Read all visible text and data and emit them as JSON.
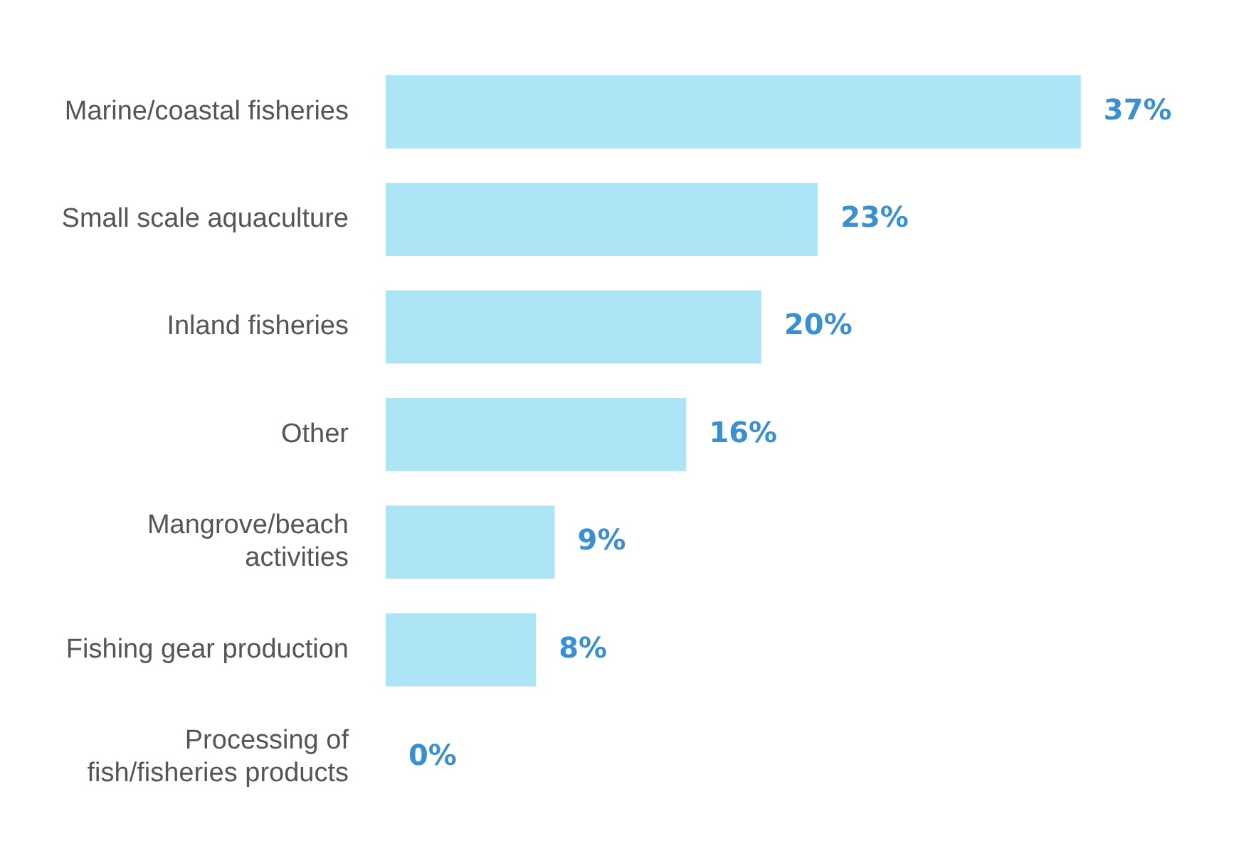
{
  "chart_data": {
    "type": "bar",
    "orientation": "horizontal",
    "categories": [
      "Marine/coastal fisheries",
      "Small scale aquaculture",
      "Inland fisheries",
      "Other",
      "Mangrove/beach activities",
      "Fishing gear production",
      "Processing of fish/fisheries products"
    ],
    "values": [
      37,
      23,
      20,
      16,
      9,
      8,
      0
    ],
    "value_labels": [
      "37%",
      "23%",
      "20%",
      "16%",
      "9%",
      "8%",
      "0%"
    ],
    "color": "#ade5f7",
    "grid": false,
    "legend": false,
    "tick_labels": "y"
  }
}
